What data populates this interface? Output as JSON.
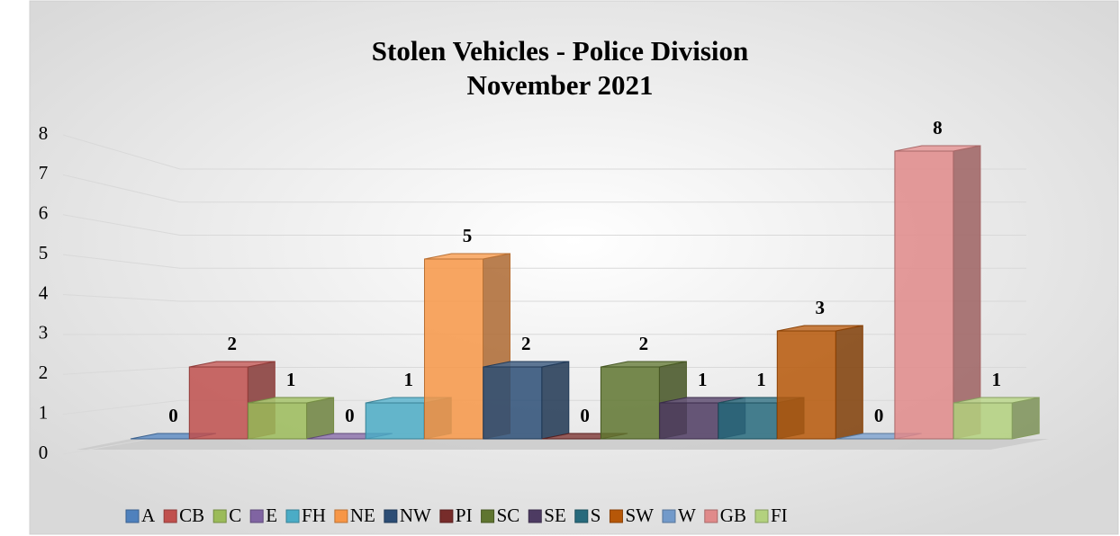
{
  "chart_data": {
    "type": "bar3d",
    "title": "Stolen Vehicles - Police Division",
    "subtitle": "November 2021",
    "series": [
      {
        "name": "A",
        "color": "#4f81bd",
        "values": [
          0
        ]
      },
      {
        "name": "CB",
        "color": "#c0504d",
        "values": [
          2
        ]
      },
      {
        "name": "C",
        "color": "#9bbb59",
        "values": [
          1
        ]
      },
      {
        "name": "E",
        "color": "#8064a2",
        "values": [
          0
        ]
      },
      {
        "name": "FH",
        "color": "#4bacc6",
        "values": [
          1
        ]
      },
      {
        "name": "NE",
        "color": "#f79646",
        "values": [
          5
        ]
      },
      {
        "name": "NW",
        "color": "#2c4d75",
        "values": [
          2
        ]
      },
      {
        "name": "PI",
        "color": "#772c2a",
        "values": [
          0
        ]
      },
      {
        "name": "SC",
        "color": "#5f7530",
        "values": [
          2
        ]
      },
      {
        "name": "SE",
        "color": "#4d3b62",
        "values": [
          1
        ]
      },
      {
        "name": "S",
        "color": "#276a7c",
        "values": [
          1
        ]
      },
      {
        "name": "SW",
        "color": "#b65708",
        "values": [
          3
        ]
      },
      {
        "name": "W",
        "color": "#729aca",
        "values": [
          0
        ]
      },
      {
        "name": "GB",
        "color": "#e08a8a",
        "values": [
          8
        ]
      },
      {
        "name": "FI",
        "color": "#b3d17e",
        "values": [
          1
        ]
      }
    ],
    "ylim": [
      0,
      8
    ],
    "yticks": [
      0,
      1,
      2,
      3,
      4,
      5,
      6,
      7,
      8
    ],
    "grid": true,
    "legend": "bottom"
  }
}
